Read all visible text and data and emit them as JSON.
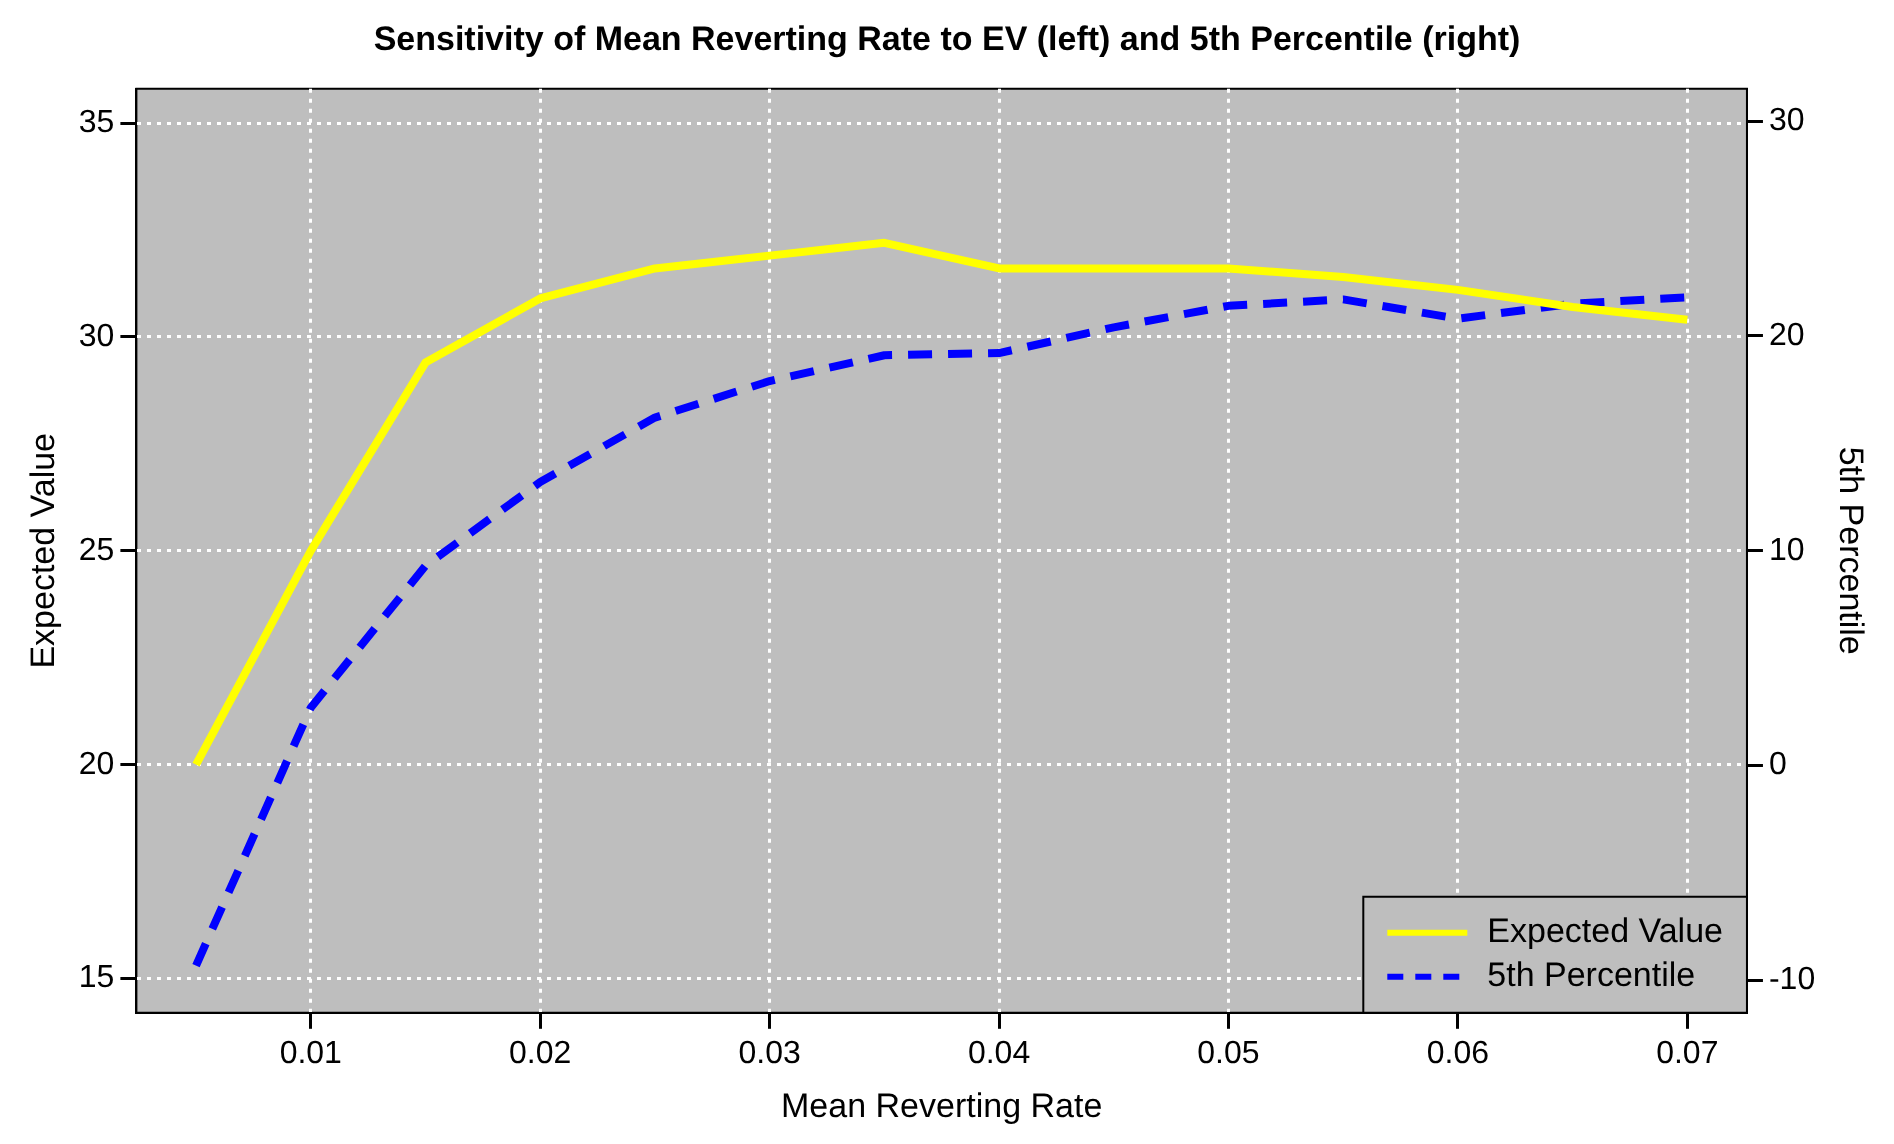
{
  "chart_data": {
    "type": "line",
    "title": "Sensitivity of Mean Reverting Rate to EV (left) and 5th Percentile (right)",
    "xlabel": "Mean Reverting Rate",
    "ylabel": "Expected Value",
    "y2label": "5th Percentile",
    "x": [
      0.005,
      0.01,
      0.015,
      0.02,
      0.025,
      0.03,
      0.035,
      0.04,
      0.045,
      0.05,
      0.055,
      0.06,
      0.065,
      0.07
    ],
    "series": [
      {
        "name": "Expected Value",
        "color": "#ffff00",
        "line_style": "solid",
        "values": [
          20,
          25,
          29.4,
          30.9,
          31.6,
          31.9,
          32.2,
          31.6,
          31.6,
          31.6,
          31.4,
          31.1,
          30.7,
          30.4
        ]
      },
      {
        "name": "5th Percentile",
        "color": "#0000ff",
        "line_style": "dashed",
        "axis": "y2",
        "values": [
          -9.3,
          2.7,
          9.3,
          13.2,
          16.2,
          17.9,
          19.1,
          19.2,
          20.4,
          21.4,
          21.7,
          20.8,
          21.5,
          21.8
        ]
      }
    ],
    "xlim": [
      0.0024,
      0.0726
    ],
    "xticks": [
      {
        "value": 0.01,
        "label": "0.01"
      },
      {
        "value": 0.02,
        "label": "0.02"
      },
      {
        "value": 0.03,
        "label": "0.03"
      },
      {
        "value": 0.04,
        "label": "0.04"
      },
      {
        "value": 0.05,
        "label": "0.05"
      },
      {
        "value": 0.06,
        "label": "0.06"
      },
      {
        "value": 0.07,
        "label": "0.07"
      }
    ],
    "ylim": [
      14.2,
      35.8
    ],
    "yticks": [
      15,
      20,
      25,
      30,
      35
    ],
    "y2lim": [
      -11.5,
      31.5
    ],
    "y2ticks": [
      -10,
      0,
      10,
      20,
      30
    ],
    "grid": true,
    "legend": "bottom right",
    "marker": "none"
  }
}
